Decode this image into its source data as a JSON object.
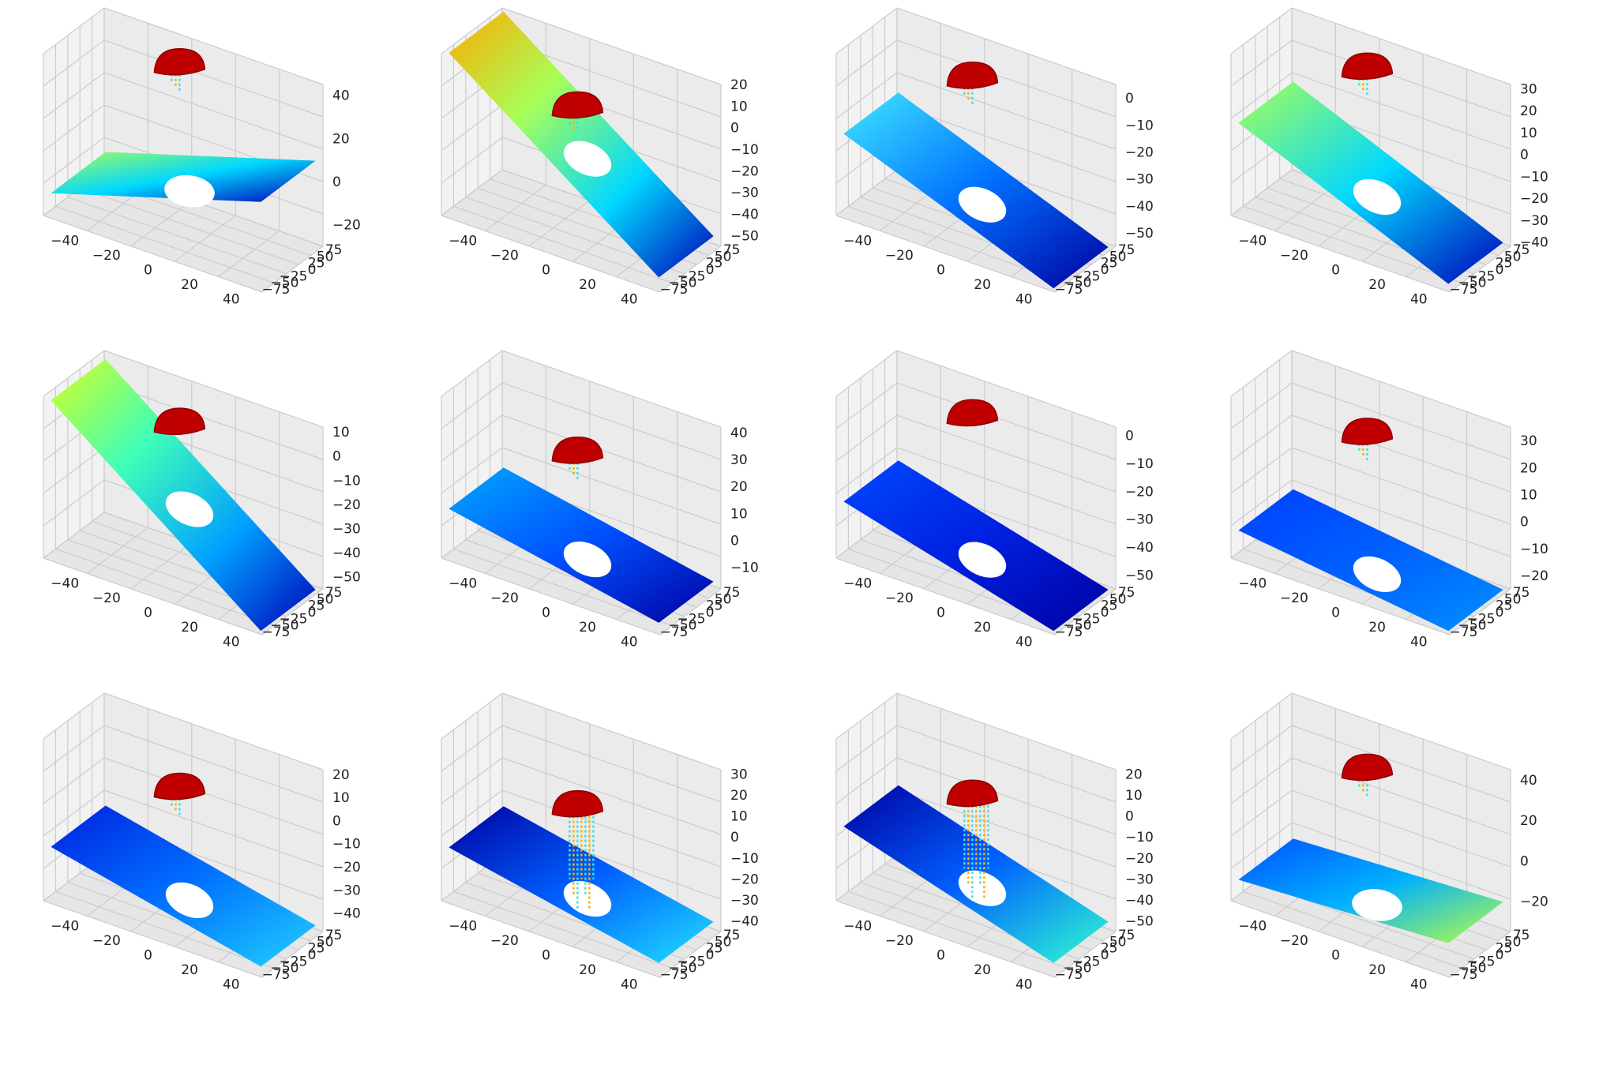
{
  "figure": {
    "layout": "3x4 grid of 3D scatter plots",
    "colormap": "jet",
    "pane_color": "#f2f2f2",
    "grid_color": "#cccccc",
    "axis_color": "#333333"
  },
  "chart_data": [
    {
      "type": "scatter",
      "title": "",
      "xlabel": "",
      "ylabel": "",
      "zlabel": "",
      "x_ticks": [
        "−40",
        "−20",
        "0",
        "20",
        "40"
      ],
      "y_ticks": [
        "75",
        "50",
        "25",
        "0",
        "−25",
        "−50",
        "−75"
      ],
      "z_ticks": [
        "40",
        "20",
        "0",
        "−20"
      ],
      "xlim": [
        -50,
        50
      ],
      "ylim": [
        -75,
        75
      ],
      "zlim": [
        -30,
        45
      ],
      "plane": {
        "z_start": -20,
        "z_end": 10,
        "colors": [
          "#a8ff57",
          "#00d8ff",
          "#0000b8"
        ]
      },
      "object": {
        "z_top": 45,
        "color": "#c00000",
        "drips": "few"
      }
    },
    {
      "type": "scatter",
      "title": "",
      "xlabel": "",
      "ylabel": "",
      "zlabel": "",
      "x_ticks": [
        "−40",
        "−20",
        "0",
        "20",
        "40"
      ],
      "y_ticks": [
        "75",
        "50",
        "25",
        "0",
        "−25",
        "−50",
        "−75"
      ],
      "z_ticks": [
        "20",
        "10",
        "0",
        "−10",
        "−20",
        "−30",
        "−40",
        "−50"
      ],
      "xlim": [
        -50,
        50
      ],
      "ylim": [
        -75,
        75
      ],
      "zlim": [
        -55,
        20
      ],
      "plane": {
        "z_start": 20,
        "z_end": -50,
        "colors": [
          "#ffa800",
          "#a8ff57",
          "#00d8ff",
          "#0000b8"
        ]
      },
      "object": {
        "z_top": 0,
        "color": "#c00000",
        "drips": "few"
      }
    },
    {
      "type": "scatter",
      "title": "",
      "xlabel": "",
      "ylabel": "",
      "zlabel": "",
      "x_ticks": [
        "−40",
        "−20",
        "0",
        "20",
        "40"
      ],
      "y_ticks": [
        "75",
        "50",
        "25",
        "0",
        "−25",
        "−50",
        "−75"
      ],
      "z_ticks": [
        "0",
        "−10",
        "−20",
        "−30",
        "−40",
        "−50"
      ],
      "xlim": [
        -50,
        50
      ],
      "ylim": [
        -75,
        75
      ],
      "zlim": [
        -55,
        5
      ],
      "plane": {
        "z_start": -25,
        "z_end": -55,
        "colors": [
          "#40e8ff",
          "#0070ff",
          "#0000a0"
        ]
      },
      "object": {
        "z_top": 0,
        "color": "#c00000",
        "drips": "few"
      }
    },
    {
      "type": "scatter",
      "title": "",
      "xlabel": "",
      "ylabel": "",
      "zlabel": "",
      "x_ticks": [
        "−40",
        "−20",
        "0",
        "20",
        "40"
      ],
      "y_ticks": [
        "75",
        "50",
        "25",
        "0",
        "−25",
        "−50",
        "−75"
      ],
      "z_ticks": [
        "30",
        "20",
        "10",
        "0",
        "−10",
        "−20",
        "−30",
        "−40"
      ],
      "xlim": [
        -50,
        50
      ],
      "ylim": [
        -75,
        75
      ],
      "zlim": [
        -42,
        32
      ],
      "plane": {
        "z_start": 0,
        "z_end": -40,
        "colors": [
          "#a8ff57",
          "#00d8ff",
          "#0000b8"
        ]
      },
      "object": {
        "z_top": 30,
        "color": "#c00000",
        "drips": "few"
      }
    },
    {
      "type": "scatter",
      "title": "",
      "xlabel": "",
      "ylabel": "",
      "zlabel": "",
      "x_ticks": [
        "−40",
        "−20",
        "0",
        "20",
        "40"
      ],
      "y_ticks": [
        "75",
        "50",
        "25",
        "0",
        "−25",
        "−50",
        "−75"
      ],
      "z_ticks": [
        "10",
        "0",
        "−10",
        "−20",
        "−30",
        "−40",
        "−50"
      ],
      "xlim": [
        -50,
        50
      ],
      "ylim": [
        -75,
        75
      ],
      "zlim": [
        -55,
        12
      ],
      "plane": {
        "z_start": 10,
        "z_end": -55,
        "colors": [
          "#d8ff20",
          "#40ffb8",
          "#00a0ff",
          "#0000b8"
        ]
      },
      "object": {
        "z_top": 5,
        "color": "#c00000",
        "drips": "none"
      }
    },
    {
      "type": "scatter",
      "title": "",
      "xlabel": "",
      "ylabel": "",
      "zlabel": "",
      "x_ticks": [
        "−40",
        "−20",
        "0",
        "20",
        "40"
      ],
      "y_ticks": [
        "75",
        "50",
        "25",
        "0",
        "−25",
        "−50",
        "−75"
      ],
      "z_ticks": [
        "40",
        "30",
        "20",
        "10",
        "0",
        "−10"
      ],
      "xlim": [
        -50,
        50
      ],
      "ylim": [
        -75,
        75
      ],
      "zlim": [
        -18,
        42
      ],
      "plane": {
        "z_start": 0,
        "z_end": -15,
        "colors": [
          "#00a8ff",
          "#0050ff",
          "#0000a0"
        ]
      },
      "object": {
        "z_top": 25,
        "color": "#c00000",
        "drips": "few"
      }
    },
    {
      "type": "scatter",
      "title": "",
      "xlabel": "",
      "ylabel": "",
      "zlabel": "",
      "x_ticks": [
        "−40",
        "−20",
        "0",
        "20",
        "40"
      ],
      "y_ticks": [
        "75",
        "50",
        "25",
        "0",
        "−25",
        "−50",
        "−75"
      ],
      "z_ticks": [
        "0",
        "−10",
        "−20",
        "−30",
        "−40",
        "−50"
      ],
      "xlim": [
        -50,
        50
      ],
      "ylim": [
        -75,
        75
      ],
      "zlim": [
        -55,
        3
      ],
      "plane": {
        "z_start": -35,
        "z_end": -55,
        "colors": [
          "#0048ff",
          "#0020e0",
          "#0000a0"
        ]
      },
      "object": {
        "z_top": 0,
        "color": "#c00000",
        "drips": "none"
      }
    },
    {
      "type": "scatter",
      "title": "",
      "xlabel": "",
      "ylabel": "",
      "zlabel": "",
      "x_ticks": [
        "−40",
        "−20",
        "0",
        "20",
        "40"
      ],
      "y_ticks": [
        "75",
        "50",
        "25",
        "0",
        "−25",
        "−50",
        "−75"
      ],
      "z_ticks": [
        "30",
        "20",
        "10",
        "0",
        "−10",
        "−20"
      ],
      "xlim": [
        -50,
        50
      ],
      "ylim": [
        -75,
        75
      ],
      "zlim": [
        -25,
        35
      ],
      "plane": {
        "z_start": -15,
        "z_end": -25,
        "colors": [
          "#0040ff",
          "#0060ff",
          "#0090ff"
        ]
      },
      "object": {
        "z_top": 25,
        "color": "#c00000",
        "drips": "few"
      }
    },
    {
      "type": "scatter",
      "title": "",
      "xlabel": "",
      "ylabel": "",
      "zlabel": "",
      "x_ticks": [
        "−40",
        "−20",
        "0",
        "20",
        "40"
      ],
      "y_ticks": [
        "75",
        "50",
        "25",
        "0",
        "−25",
        "−50",
        "−75"
      ],
      "z_ticks": [
        "20",
        "10",
        "0",
        "−10",
        "−20",
        "−30",
        "−40"
      ],
      "xlim": [
        -50,
        50
      ],
      "ylim": [
        -75,
        75
      ],
      "zlim": [
        -48,
        22
      ],
      "plane": {
        "z_start": -25,
        "z_end": -45,
        "colors": [
          "#0020e0",
          "#0070ff",
          "#20d0ff"
        ]
      },
      "object": {
        "z_top": 5,
        "color": "#c00000",
        "drips": "few"
      }
    },
    {
      "type": "scatter",
      "title": "",
      "xlabel": "",
      "ylabel": "",
      "zlabel": "",
      "x_ticks": [
        "−40",
        "−20",
        "0",
        "20",
        "40"
      ],
      "y_ticks": [
        "75",
        "50",
        "25",
        "0",
        "−25",
        "−50",
        "−75"
      ],
      "z_ticks": [
        "30",
        "20",
        "10",
        "0",
        "−10",
        "−20",
        "−30",
        "−40"
      ],
      "xlim": [
        -50,
        50
      ],
      "ylim": [
        -75,
        75
      ],
      "zlim": [
        -45,
        32
      ],
      "plane": {
        "z_start": -20,
        "z_end": -40,
        "colors": [
          "#0000a0",
          "#0060ff",
          "#20e0ff"
        ]
      },
      "object": {
        "z_top": 5,
        "color": "#c00000",
        "drips": "many"
      }
    },
    {
      "type": "scatter",
      "title": "",
      "xlabel": "",
      "ylabel": "",
      "zlabel": "",
      "x_ticks": [
        "−40",
        "−20",
        "0",
        "20",
        "40"
      ],
      "y_ticks": [
        "75",
        "50",
        "25",
        "0",
        "−25",
        "−50",
        "−75"
      ],
      "z_ticks": [
        "20",
        "10",
        "0",
        "−10",
        "−20",
        "−30",
        "−40",
        "−50"
      ],
      "xlim": [
        -50,
        50
      ],
      "ylim": [
        -75,
        75
      ],
      "zlim": [
        -55,
        22
      ],
      "plane": {
        "z_start": -20,
        "z_end": -50,
        "colors": [
          "#0000a0",
          "#0060ff",
          "#30ffd0"
        ]
      },
      "object": {
        "z_top": 0,
        "color": "#c00000",
        "drips": "many"
      }
    },
    {
      "type": "scatter",
      "title": "",
      "xlabel": "",
      "ylabel": "",
      "zlabel": "",
      "x_ticks": [
        "−40",
        "−20",
        "0",
        "20",
        "40"
      ],
      "y_ticks": [
        "75",
        "50",
        "25",
        "0",
        "−25",
        "−50",
        "−75"
      ],
      "z_ticks": [
        "40",
        "20",
        "0",
        "−20"
      ],
      "xlim": [
        -50,
        50
      ],
      "ylim": [
        -75,
        75
      ],
      "zlim": [
        -35,
        45
      ],
      "plane": {
        "z_start": -25,
        "z_end": -20,
        "colors": [
          "#0050ff",
          "#00b0ff",
          "#b8ff40"
        ]
      },
      "object": {
        "z_top": 35,
        "color": "#c00000",
        "drips": "few"
      }
    }
  ]
}
